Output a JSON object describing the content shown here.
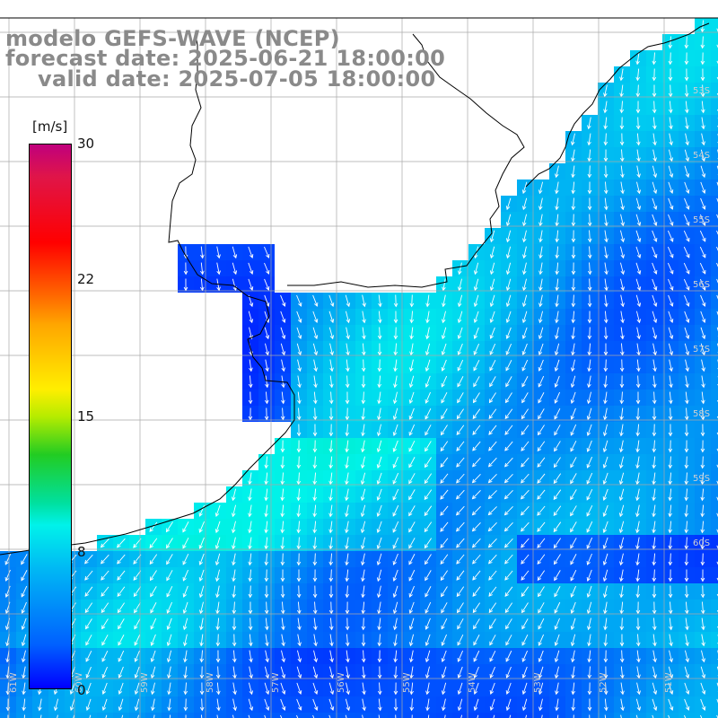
{
  "title": {
    "model": "modelo GEFS-WAVE (NCEP)",
    "forecast_date": "forecast date: 2025-06-21 18:00:00",
    "valid_date": "valid date: 2025-07-05 18:00:00"
  },
  "colorbar": {
    "unit": "[m/s]",
    "ticks": [
      "30",
      "22",
      "15",
      "8",
      "0"
    ],
    "colors": [
      "#c0007d",
      "#ff0000",
      "#ffa500",
      "#ffee00",
      "#22cc22",
      "#00f2ea",
      "#0060ff",
      "#0000ff"
    ]
  },
  "grid": {
    "lat_labels": [
      "53S",
      "54S",
      "55S",
      "56S",
      "57S",
      "58S",
      "59S",
      "60S"
    ],
    "lon_labels": [
      "61W",
      "60W",
      "59W",
      "58W",
      "57W",
      "56W",
      "55W",
      "54W",
      "53W",
      "52W",
      "51W"
    ]
  },
  "layers": {
    "land": "#ffffff",
    "coastline": "#000000",
    "gridlines": "#a9a9a9",
    "vectors": "#ffffff"
  }
}
